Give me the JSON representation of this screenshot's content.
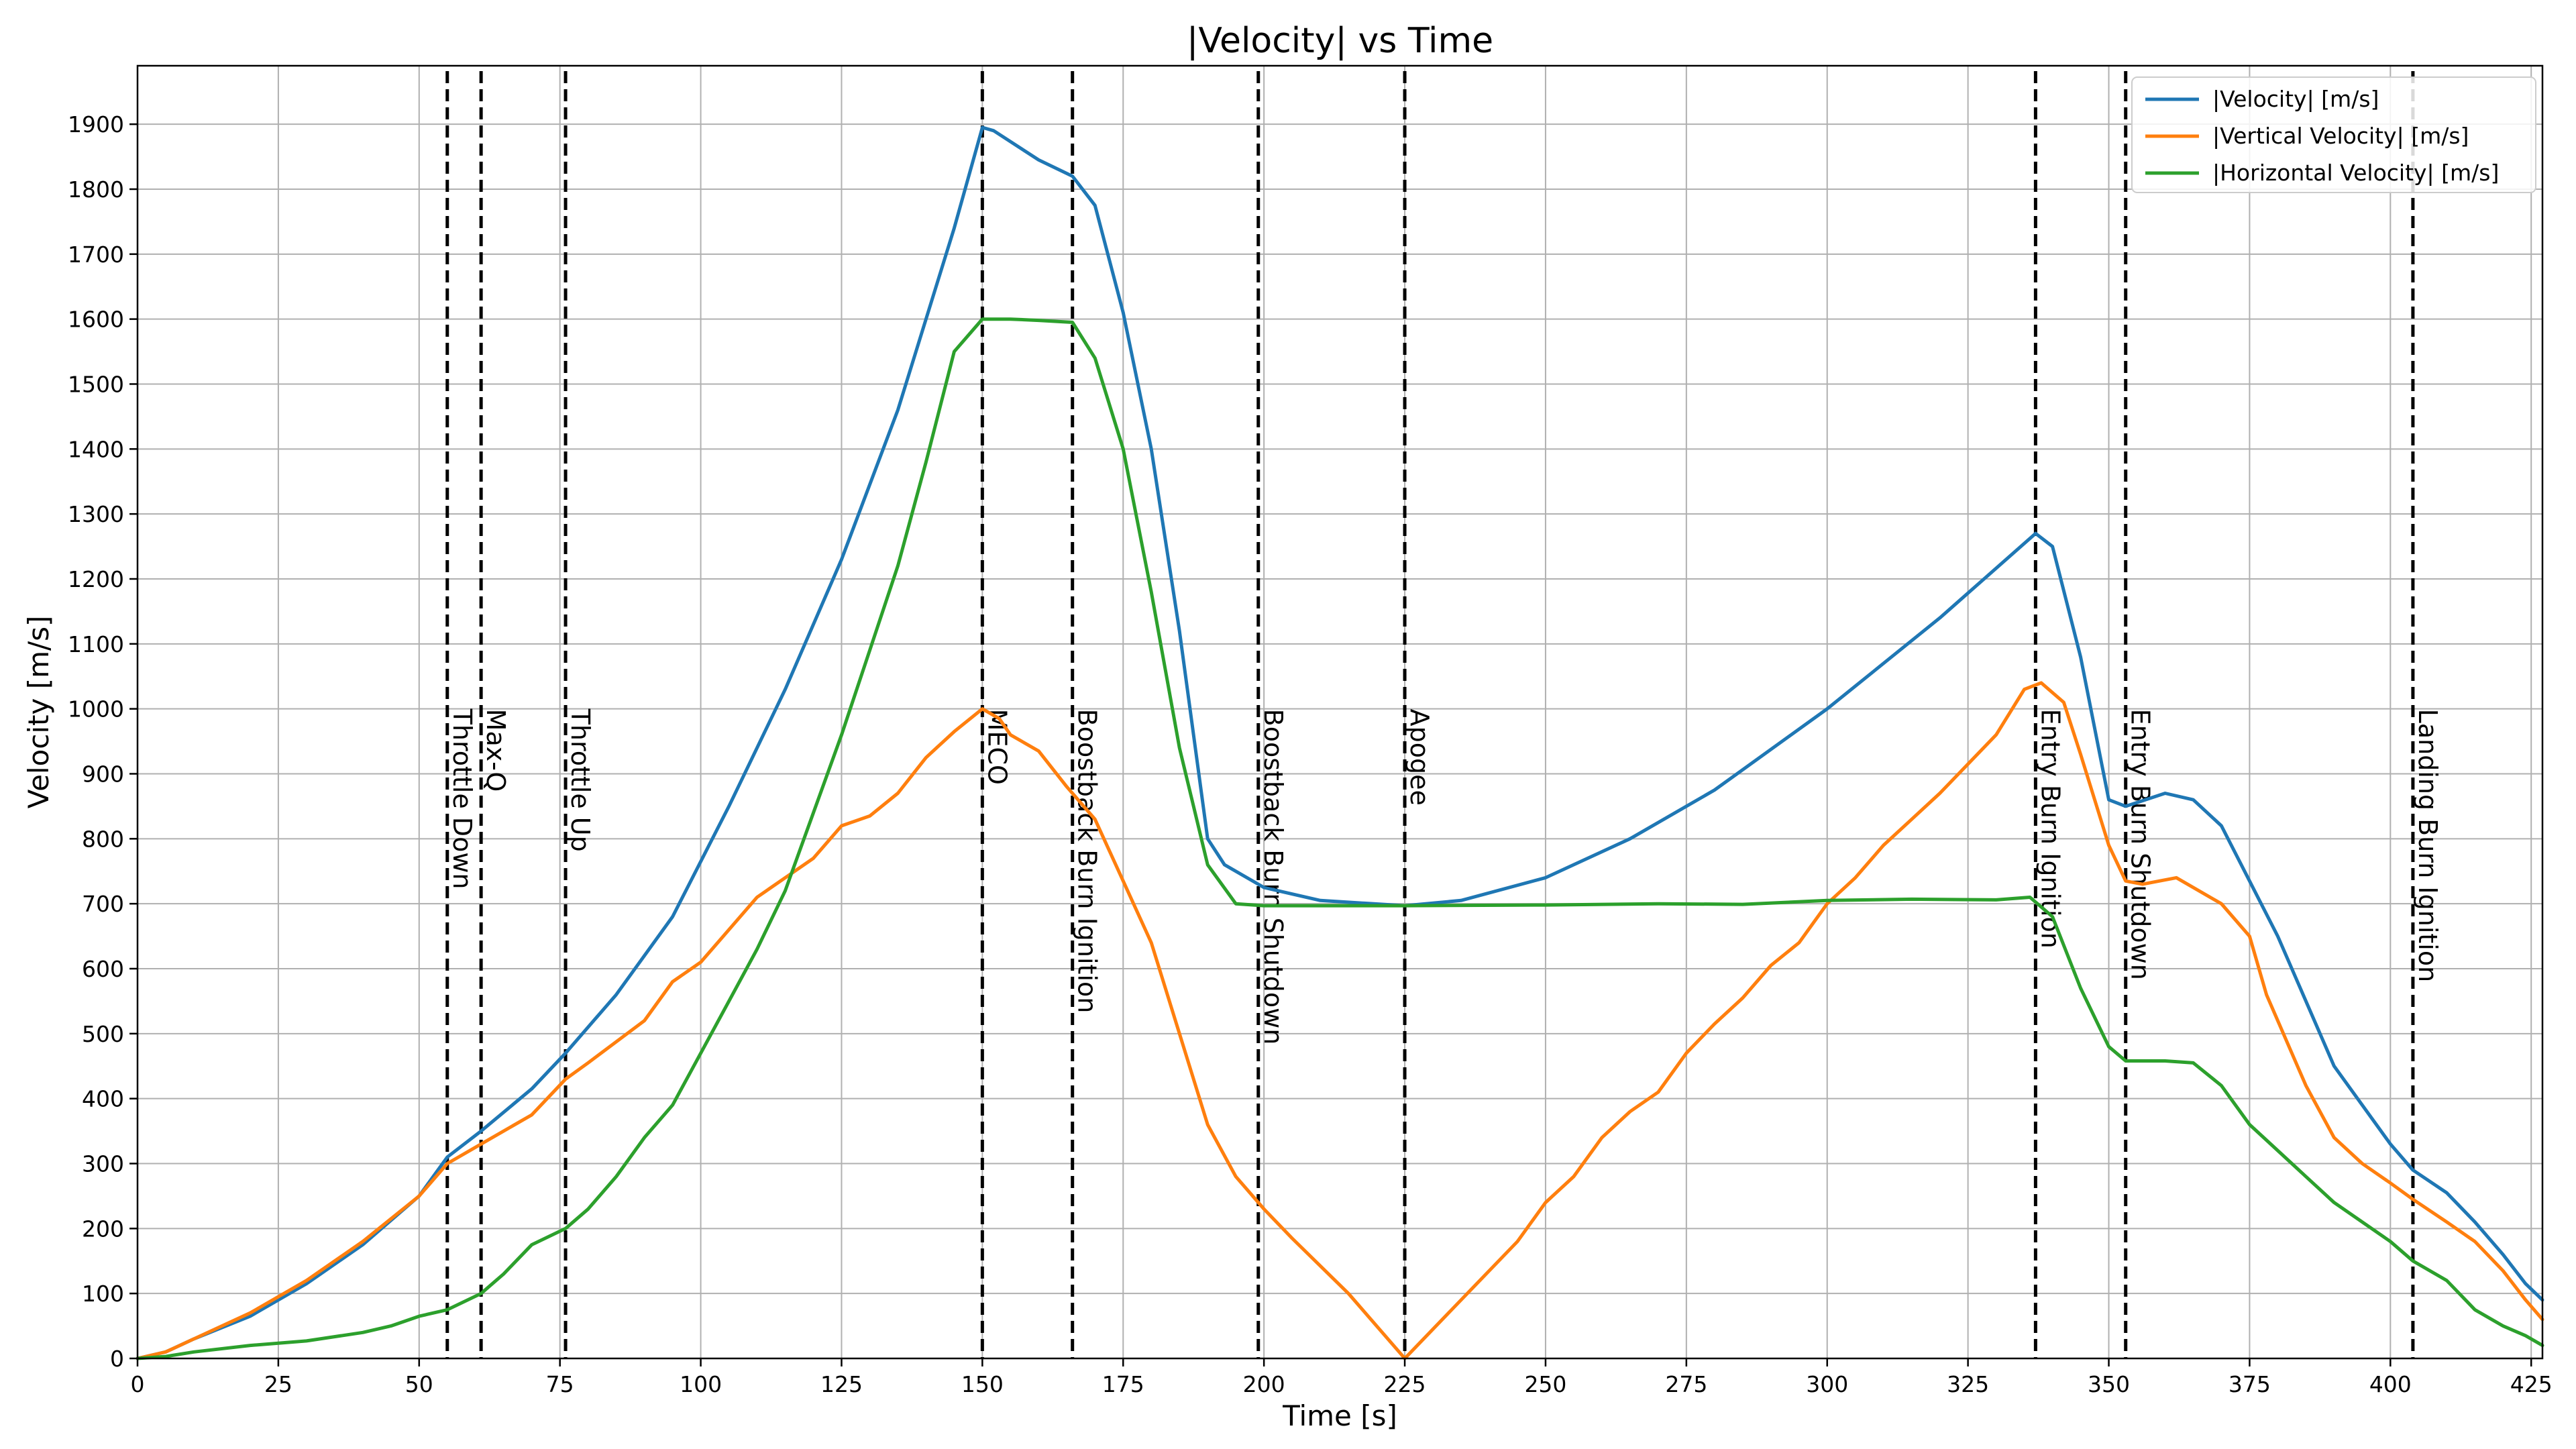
{
  "chart_data": {
    "type": "line",
    "title": "|Velocity| vs Time",
    "xlabel": "Time [s]",
    "ylabel": "Velocity [m/s]",
    "xlim": [
      0,
      427
    ],
    "ylim": [
      0,
      1990
    ],
    "xticks": [
      0,
      25,
      50,
      75,
      100,
      125,
      150,
      175,
      200,
      225,
      250,
      275,
      300,
      325,
      350,
      375,
      400,
      425
    ],
    "yticks": [
      0,
      100,
      200,
      300,
      400,
      500,
      600,
      700,
      800,
      900,
      1000,
      1100,
      1200,
      1300,
      1400,
      1500,
      1600,
      1700,
      1800,
      1900
    ],
    "grid": true,
    "legend_position": "top-right",
    "series": [
      {
        "name": "|Velocity| [m/s]",
        "color": "#1f77b4",
        "points": [
          [
            0,
            0
          ],
          [
            5,
            10
          ],
          [
            10,
            30
          ],
          [
            20,
            65
          ],
          [
            30,
            115
          ],
          [
            40,
            175
          ],
          [
            50,
            250
          ],
          [
            55,
            310
          ],
          [
            61,
            350
          ],
          [
            70,
            415
          ],
          [
            76,
            470
          ],
          [
            85,
            560
          ],
          [
            95,
            680
          ],
          [
            105,
            850
          ],
          [
            115,
            1030
          ],
          [
            125,
            1230
          ],
          [
            135,
            1460
          ],
          [
            145,
            1740
          ],
          [
            150,
            1895
          ],
          [
            152,
            1890
          ],
          [
            160,
            1845
          ],
          [
            166,
            1820
          ],
          [
            170,
            1775
          ],
          [
            175,
            1610
          ],
          [
            180,
            1400
          ],
          [
            185,
            1120
          ],
          [
            190,
            800
          ],
          [
            193,
            760
          ],
          [
            200,
            725
          ],
          [
            210,
            705
          ],
          [
            225,
            697
          ],
          [
            235,
            705
          ],
          [
            250,
            740
          ],
          [
            265,
            800
          ],
          [
            280,
            875
          ],
          [
            300,
            1000
          ],
          [
            320,
            1140
          ],
          [
            337,
            1270
          ],
          [
            340,
            1250
          ],
          [
            345,
            1080
          ],
          [
            350,
            860
          ],
          [
            353,
            850
          ],
          [
            360,
            870
          ],
          [
            365,
            860
          ],
          [
            370,
            820
          ],
          [
            380,
            650
          ],
          [
            390,
            450
          ],
          [
            400,
            330
          ],
          [
            404,
            290
          ],
          [
            410,
            255
          ],
          [
            415,
            210
          ],
          [
            420,
            160
          ],
          [
            424,
            115
          ],
          [
            427,
            90
          ]
        ]
      },
      {
        "name": "|Vertical Velocity| [m/s]",
        "color": "#ff7f0e",
        "points": [
          [
            0,
            0
          ],
          [
            5,
            10
          ],
          [
            10,
            30
          ],
          [
            20,
            70
          ],
          [
            30,
            120
          ],
          [
            40,
            180
          ],
          [
            50,
            250
          ],
          [
            55,
            300
          ],
          [
            61,
            330
          ],
          [
            70,
            375
          ],
          [
            76,
            430
          ],
          [
            80,
            455
          ],
          [
            90,
            520
          ],
          [
            95,
            580
          ],
          [
            100,
            610
          ],
          [
            105,
            660
          ],
          [
            110,
            710
          ],
          [
            120,
            770
          ],
          [
            125,
            820
          ],
          [
            130,
            835
          ],
          [
            135,
            870
          ],
          [
            140,
            925
          ],
          [
            145,
            965
          ],
          [
            150,
            1000
          ],
          [
            153,
            985
          ],
          [
            155,
            960
          ],
          [
            160,
            935
          ],
          [
            165,
            880
          ],
          [
            170,
            830
          ],
          [
            175,
            735
          ],
          [
            180,
            640
          ],
          [
            185,
            500
          ],
          [
            190,
            360
          ],
          [
            195,
            280
          ],
          [
            200,
            230
          ],
          [
            205,
            185
          ],
          [
            215,
            100
          ],
          [
            225,
            0
          ],
          [
            235,
            90
          ],
          [
            245,
            180
          ],
          [
            250,
            240
          ],
          [
            255,
            280
          ],
          [
            260,
            340
          ],
          [
            265,
            380
          ],
          [
            270,
            410
          ],
          [
            275,
            470
          ],
          [
            280,
            515
          ],
          [
            285,
            555
          ],
          [
            290,
            605
          ],
          [
            295,
            640
          ],
          [
            300,
            700
          ],
          [
            305,
            740
          ],
          [
            310,
            790
          ],
          [
            315,
            830
          ],
          [
            320,
            870
          ],
          [
            325,
            915
          ],
          [
            330,
            960
          ],
          [
            335,
            1030
          ],
          [
            338,
            1040
          ],
          [
            342,
            1010
          ],
          [
            345,
            930
          ],
          [
            350,
            790
          ],
          [
            353,
            735
          ],
          [
            356,
            730
          ],
          [
            362,
            740
          ],
          [
            370,
            700
          ],
          [
            375,
            650
          ],
          [
            378,
            560
          ],
          [
            385,
            420
          ],
          [
            390,
            340
          ],
          [
            395,
            300
          ],
          [
            400,
            270
          ],
          [
            404,
            245
          ],
          [
            410,
            210
          ],
          [
            415,
            180
          ],
          [
            420,
            135
          ],
          [
            424,
            90
          ],
          [
            427,
            60
          ]
        ]
      },
      {
        "name": "|Horizontal Velocity| [m/s]",
        "color": "#2ca02c",
        "points": [
          [
            0,
            0
          ],
          [
            5,
            3
          ],
          [
            10,
            10
          ],
          [
            20,
            20
          ],
          [
            30,
            27
          ],
          [
            40,
            40
          ],
          [
            45,
            50
          ],
          [
            50,
            65
          ],
          [
            55,
            75
          ],
          [
            61,
            100
          ],
          [
            65,
            130
          ],
          [
            70,
            175
          ],
          [
            76,
            200
          ],
          [
            80,
            230
          ],
          [
            85,
            280
          ],
          [
            90,
            340
          ],
          [
            95,
            390
          ],
          [
            100,
            470
          ],
          [
            105,
            550
          ],
          [
            110,
            630
          ],
          [
            115,
            720
          ],
          [
            120,
            840
          ],
          [
            125,
            960
          ],
          [
            130,
            1090
          ],
          [
            135,
            1220
          ],
          [
            140,
            1380
          ],
          [
            145,
            1550
          ],
          [
            150,
            1600
          ],
          [
            155,
            1600
          ],
          [
            160,
            1598
          ],
          [
            166,
            1595
          ],
          [
            170,
            1540
          ],
          [
            175,
            1400
          ],
          [
            180,
            1180
          ],
          [
            185,
            940
          ],
          [
            190,
            760
          ],
          [
            195,
            700
          ],
          [
            200,
            697
          ],
          [
            210,
            697
          ],
          [
            225,
            697
          ],
          [
            250,
            698
          ],
          [
            270,
            700
          ],
          [
            285,
            699
          ],
          [
            300,
            705
          ],
          [
            315,
            707
          ],
          [
            330,
            706
          ],
          [
            336,
            710
          ],
          [
            340,
            680
          ],
          [
            345,
            570
          ],
          [
            350,
            480
          ],
          [
            353,
            458
          ],
          [
            360,
            458
          ],
          [
            365,
            455
          ],
          [
            370,
            420
          ],
          [
            375,
            360
          ],
          [
            380,
            320
          ],
          [
            385,
            280
          ],
          [
            390,
            240
          ],
          [
            400,
            180
          ],
          [
            404,
            150
          ],
          [
            410,
            120
          ],
          [
            415,
            75
          ],
          [
            420,
            50
          ],
          [
            424,
            35
          ],
          [
            427,
            20
          ]
        ]
      }
    ],
    "events": [
      {
        "x": 55,
        "label": "Throttle Down"
      },
      {
        "x": 61,
        "label": "Max-Q"
      },
      {
        "x": 76,
        "label": "Throttle Up"
      },
      {
        "x": 150,
        "label": "MECO"
      },
      {
        "x": 166,
        "label": "Boostback Burn Ignition"
      },
      {
        "x": 199,
        "label": "Boostback Burn Shutdown"
      },
      {
        "x": 225,
        "label": "Apogee"
      },
      {
        "x": 337,
        "label": "Entry Burn Ignition"
      },
      {
        "x": 353,
        "label": "Entry Burn Shutdown"
      },
      {
        "x": 404,
        "label": "Landing Burn Ignition"
      }
    ]
  }
}
